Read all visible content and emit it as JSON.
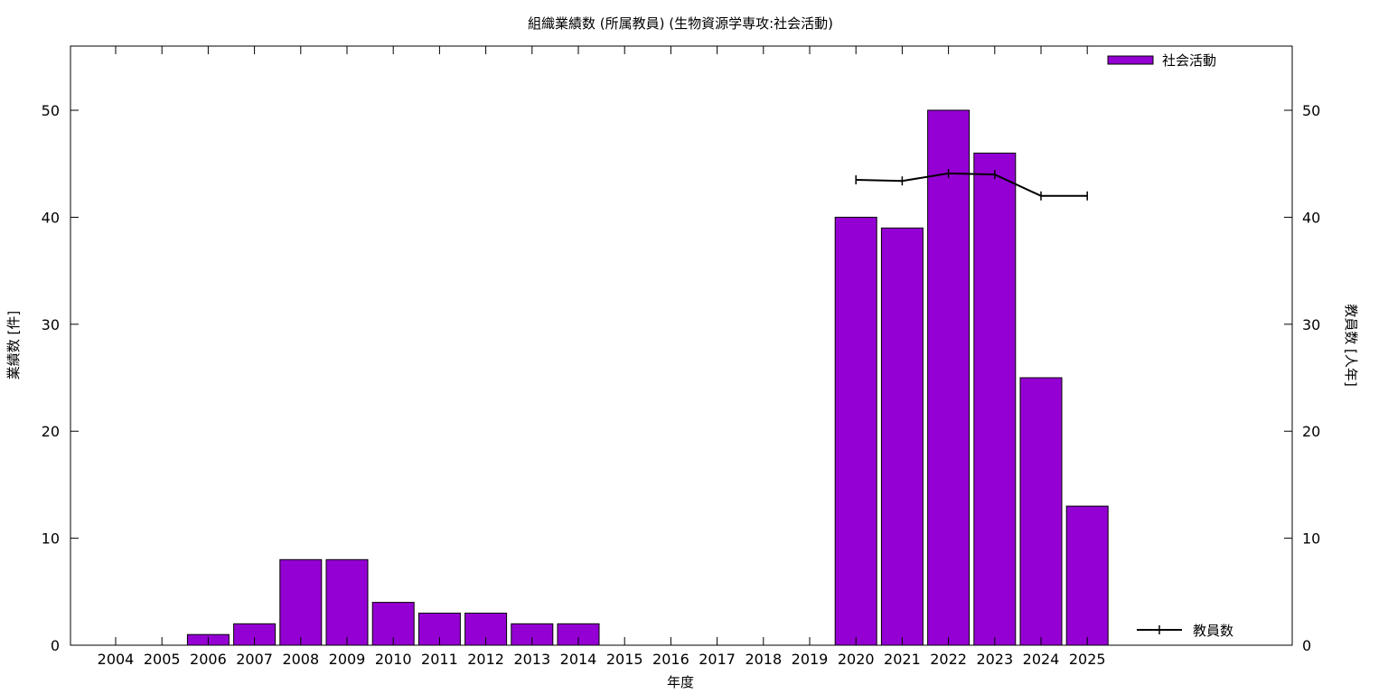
{
  "chart_data": {
    "type": "bar",
    "title": "組織業績数 (所属教員) (生物資源学専攻:社会活動)",
    "xlabel": "年度",
    "ylabel": "業績数 [件]",
    "y2label": "教員数 [人年]",
    "categories": [
      "2004",
      "2005",
      "2006",
      "2007",
      "2008",
      "2009",
      "2010",
      "2011",
      "2012",
      "2013",
      "2014",
      "2015",
      "2016",
      "2017",
      "2018",
      "2019",
      "2020",
      "2021",
      "2022",
      "2023",
      "2024",
      "2025"
    ],
    "series": [
      {
        "name": "社会活動",
        "type": "bar",
        "color": "#9400d3",
        "values": [
          0,
          0,
          1,
          2,
          8,
          8,
          4,
          3,
          3,
          2,
          2,
          0,
          0,
          0,
          0,
          0,
          40,
          39,
          50,
          46,
          25,
          13
        ]
      },
      {
        "name": "教員数",
        "type": "line",
        "axis": "y2",
        "color": "#000000",
        "values": [
          null,
          null,
          null,
          null,
          null,
          null,
          null,
          null,
          null,
          null,
          null,
          null,
          null,
          null,
          null,
          null,
          43.5,
          43.4,
          44.1,
          44.0,
          42.0,
          42.0
        ]
      }
    ],
    "ylim": [
      0,
      56
    ],
    "y2lim": [
      0,
      56
    ],
    "yticks": [
      0,
      10,
      20,
      30,
      40,
      50
    ],
    "y2ticks": [
      0,
      10,
      20,
      30,
      40,
      50
    ],
    "grid": false,
    "legend_bar_position": "top-right",
    "legend_line_position": "bottom-right"
  }
}
